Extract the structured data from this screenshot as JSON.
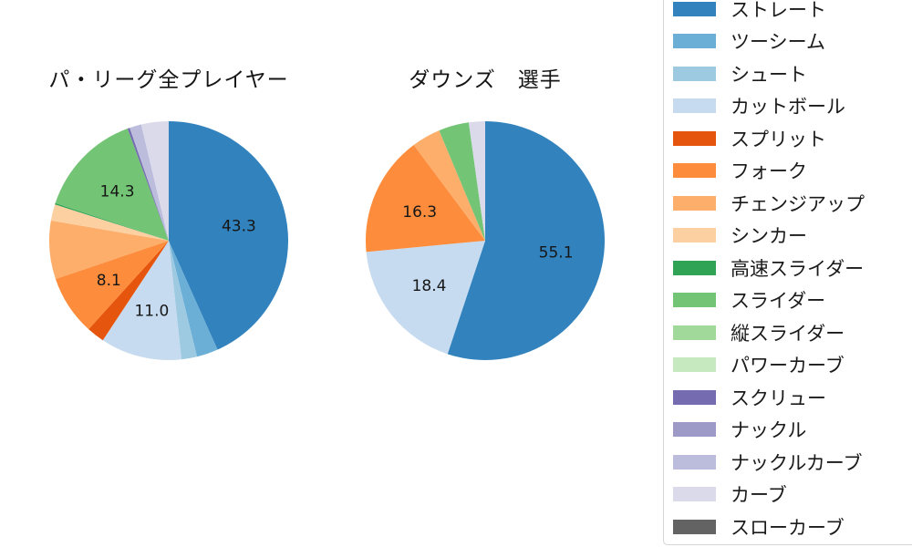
{
  "page": {
    "background": "#ffffff"
  },
  "chart_data": [
    {
      "type": "pie",
      "title": "パ・リーグ全プレイヤー",
      "direction": "clockwise",
      "start_angle": "12-oclock",
      "label_distance": 0.6,
      "slices": [
        {
          "key": "straight",
          "label": "ストレート",
          "value": 43.3,
          "pct_label": "43.3",
          "color": "#3182bd"
        },
        {
          "key": "two-seam",
          "label": "ツーシーム",
          "value": 2.9,
          "color": "#6baed6"
        },
        {
          "key": "shoot",
          "label": "シュート",
          "value": 2.1,
          "color": "#9ecae1"
        },
        {
          "key": "cut-ball",
          "label": "カットボール",
          "value": 11.0,
          "pct_label": "11.0",
          "color": "#c6dbef"
        },
        {
          "key": "split",
          "label": "スプリット",
          "value": 2.4,
          "color": "#e6550d"
        },
        {
          "key": "fork",
          "label": "フォーク",
          "value": 8.1,
          "pct_label": "8.1",
          "color": "#fd8d3c"
        },
        {
          "key": "changeup",
          "label": "チェンジアップ",
          "value": 7.9,
          "color": "#fdae6b"
        },
        {
          "key": "sinker",
          "label": "シンカー",
          "value": 2.2,
          "color": "#fdd0a2"
        },
        {
          "key": "fast-slider",
          "label": "高速スライダー",
          "value": 0.2,
          "color": "#31a354"
        },
        {
          "key": "slider",
          "label": "スライダー",
          "value": 14.3,
          "pct_label": "14.3",
          "color": "#74c476"
        },
        {
          "key": "screw",
          "label": "スクリュー",
          "value": 0.3,
          "color": "#756bb1"
        },
        {
          "key": "knuckle-curve",
          "label": "ナックルカーブ",
          "value": 1.6,
          "color": "#bcbddc"
        },
        {
          "key": "curve",
          "label": "カーブ",
          "value": 3.7,
          "color": "#dadaeb"
        }
      ]
    },
    {
      "type": "pie",
      "title": "ダウンズ　選手",
      "direction": "clockwise",
      "start_angle": "12-oclock",
      "label_distance": 0.6,
      "slices": [
        {
          "key": "straight",
          "label": "ストレート",
          "value": 55.1,
          "pct_label": "55.1",
          "color": "#3182bd"
        },
        {
          "key": "cut-ball",
          "label": "カットボール",
          "value": 18.4,
          "pct_label": "18.4",
          "color": "#c6dbef"
        },
        {
          "key": "fork",
          "label": "フォーク",
          "value": 16.3,
          "pct_label": "16.3",
          "color": "#fd8d3c"
        },
        {
          "key": "changeup",
          "label": "チェンジアップ",
          "value": 3.9,
          "color": "#fdae6b"
        },
        {
          "key": "slider",
          "label": "スライダー",
          "value": 4.1,
          "color": "#74c476"
        },
        {
          "key": "curve",
          "label": "カーブ",
          "value": 2.2,
          "color": "#dadaeb"
        }
      ]
    }
  ],
  "legend": {
    "position": "right",
    "items": [
      {
        "key": "straight",
        "label": "ストレート",
        "color": "#3182bd"
      },
      {
        "key": "two-seam",
        "label": "ツーシーム",
        "color": "#6baed6"
      },
      {
        "key": "shoot",
        "label": "シュート",
        "color": "#9ecae1"
      },
      {
        "key": "cut-ball",
        "label": "カットボール",
        "color": "#c6dbef"
      },
      {
        "key": "split",
        "label": "スプリット",
        "color": "#e6550d"
      },
      {
        "key": "fork",
        "label": "フォーク",
        "color": "#fd8d3c"
      },
      {
        "key": "changeup",
        "label": "チェンジアップ",
        "color": "#fdae6b"
      },
      {
        "key": "sinker",
        "label": "シンカー",
        "color": "#fdd0a2"
      },
      {
        "key": "fast-slider",
        "label": "高速スライダー",
        "color": "#31a354"
      },
      {
        "key": "slider",
        "label": "スライダー",
        "color": "#74c476"
      },
      {
        "key": "vertical-slider",
        "label": "縦スライダー",
        "color": "#a1d99b"
      },
      {
        "key": "power-curve",
        "label": "パワーカーブ",
        "color": "#c7e9c0"
      },
      {
        "key": "screw",
        "label": "スクリュー",
        "color": "#756bb1"
      },
      {
        "key": "knuckle",
        "label": "ナックル",
        "color": "#9e9ac8"
      },
      {
        "key": "knuckle-curve",
        "label": "ナックルカーブ",
        "color": "#bcbddc"
      },
      {
        "key": "curve",
        "label": "カーブ",
        "color": "#dadaeb"
      },
      {
        "key": "slow-curve",
        "label": "スローカーブ",
        "color": "#636363"
      }
    ]
  }
}
